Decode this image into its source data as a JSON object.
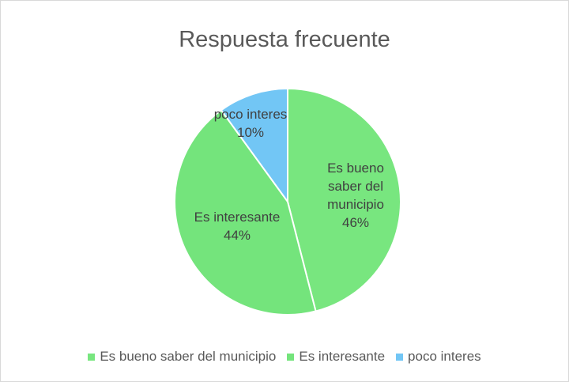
{
  "chart_data": {
    "type": "pie",
    "title": "Respuesta frecuente",
    "categories": [
      "Es bueno saber del municipio",
      "Es interesante",
      "poco interes"
    ],
    "values": [
      46,
      44,
      10
    ],
    "value_labels": [
      "46%",
      "44%",
      "10%"
    ],
    "colors": [
      "#78e67f",
      "#74e47c",
      "#72c6f5"
    ],
    "legend": "bottom"
  }
}
